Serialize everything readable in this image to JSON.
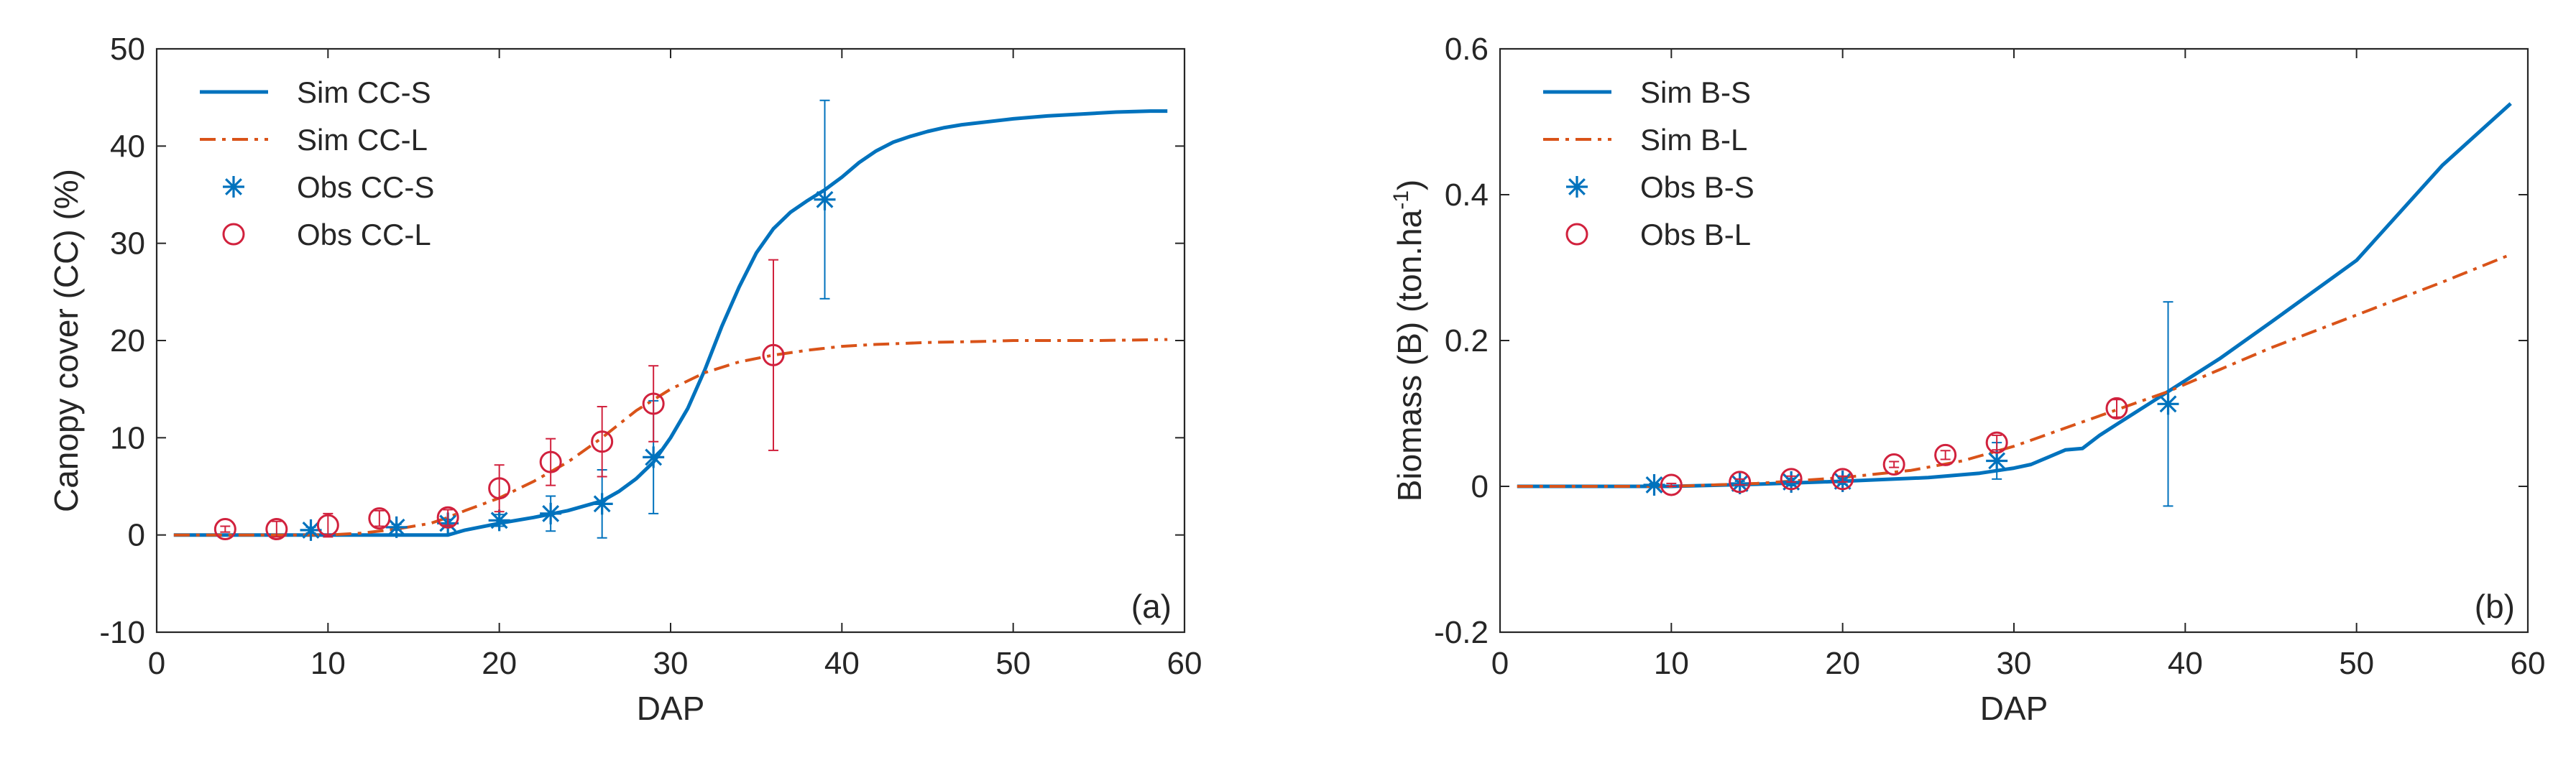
{
  "chart_data": [
    {
      "type": "line",
      "panel_label": "(a)",
      "title": "",
      "xlabel": "DAP",
      "ylabel": "Canopy cover (CC) (%)",
      "xlim": [
        0,
        60
      ],
      "ylim": [
        -10,
        50
      ],
      "xticks": [
        0,
        10,
        20,
        30,
        40,
        50,
        60
      ],
      "yticks": [
        -10,
        0,
        10,
        20,
        30,
        40,
        50
      ],
      "xtick_labels": [
        "0",
        "10",
        "20",
        "30",
        "40",
        "50",
        "60"
      ],
      "ytick_labels": [
        "-10",
        "0",
        "10",
        "20",
        "30",
        "40",
        "50"
      ],
      "legend_position": "top-left",
      "series": [
        {
          "name": "Sim CC-S",
          "kind": "line",
          "style": "solid",
          "color": "#0072BD",
          "x": [
            1,
            17,
            18,
            20,
            22,
            24,
            26,
            27,
            28,
            29,
            30,
            31,
            32,
            33,
            34,
            35,
            36,
            37,
            38,
            39,
            40,
            41,
            42,
            43,
            44,
            45,
            46,
            47,
            48,
            50,
            52,
            54,
            56,
            58,
            59
          ],
          "y": [
            0,
            0,
            0.5,
            1.2,
            1.8,
            2.5,
            3.5,
            4.5,
            5.8,
            7.5,
            10.0,
            13.0,
            17.0,
            21.5,
            25.5,
            29.0,
            31.5,
            33.2,
            34.4,
            35.5,
            36.8,
            38.3,
            39.5,
            40.4,
            41.0,
            41.5,
            41.9,
            42.2,
            42.4,
            42.8,
            43.1,
            43.3,
            43.5,
            43.6,
            43.6
          ]
        },
        {
          "name": "Sim CC-L",
          "kind": "line",
          "style": "dashdot",
          "color": "#D95319",
          "x": [
            1,
            10,
            12,
            14,
            16,
            17,
            18,
            20,
            22,
            24,
            26,
            28,
            30,
            32,
            34,
            36,
            38,
            40,
            42,
            45,
            48,
            50,
            55,
            59
          ],
          "y": [
            0,
            0,
            0.2,
            0.6,
            1.2,
            1.8,
            2.5,
            3.8,
            5.5,
            7.5,
            10.0,
            12.8,
            15.0,
            16.7,
            17.8,
            18.5,
            19.0,
            19.4,
            19.6,
            19.8,
            19.9,
            20.0,
            20.0,
            20.1
          ]
        },
        {
          "name": "Obs CC-S",
          "kind": "marker",
          "marker": "asterisk",
          "color": "#0072BD",
          "x": [
            9,
            14,
            17,
            20,
            23,
            26,
            29,
            39
          ],
          "y": [
            0.5,
            0.8,
            1.2,
            1.5,
            2.2,
            3.2,
            8.0,
            34.5
          ],
          "err": [
            0.3,
            0.3,
            0.4,
            0.6,
            1.8,
            3.5,
            5.8,
            10.2
          ]
        },
        {
          "name": "Obs CC-L",
          "kind": "marker",
          "marker": "circle",
          "color": "#D1213D",
          "x": [
            4,
            7,
            10,
            13,
            17,
            20,
            23,
            26,
            29,
            36
          ],
          "y": [
            0.6,
            0.6,
            1.0,
            1.7,
            1.8,
            4.8,
            7.5,
            9.6,
            13.5,
            18.5
          ],
          "err": [
            0.3,
            0.8,
            1.2,
            0.8,
            0.8,
            2.4,
            2.4,
            3.6,
            3.9,
            9.8
          ]
        }
      ]
    },
    {
      "type": "line",
      "panel_label": "(b)",
      "title": "",
      "xlabel": "DAP",
      "ylabel": "Biomass (B) (ton.ha",
      "ylabel_sup": "-1",
      "ylabel_end": ")",
      "xlim": [
        0,
        60
      ],
      "ylim": [
        -0.2,
        0.6
      ],
      "xticks": [
        0,
        10,
        20,
        30,
        40,
        50,
        60
      ],
      "yticks": [
        -0.2,
        0,
        0.2,
        0.4,
        0.6
      ],
      "xtick_labels": [
        "0",
        "10",
        "20",
        "30",
        "40",
        "50",
        "60"
      ],
      "ytick_labels": [
        "-0.2",
        "0",
        "0.2",
        "0.4",
        "0.6"
      ],
      "legend_position": "top-left",
      "series": [
        {
          "name": "Sim B-S",
          "kind": "line",
          "style": "solid",
          "color": "#0072BD",
          "x": [
            1,
            10,
            15,
            20,
            25,
            28,
            30,
            31,
            32,
            33,
            34,
            35,
            36,
            37,
            38,
            39,
            40,
            42,
            45,
            50,
            55,
            59
          ],
          "y": [
            0,
            0,
            0.003,
            0.007,
            0.012,
            0.018,
            0.025,
            0.03,
            0.04,
            0.05,
            0.052,
            0.07,
            0.085,
            0.1,
            0.115,
            0.13,
            0.145,
            0.175,
            0.225,
            0.31,
            0.44,
            0.525
          ]
        },
        {
          "name": "Sim B-L",
          "kind": "line",
          "style": "dashdot",
          "color": "#D95319",
          "x": [
            1,
            10,
            15,
            20,
            24,
            27,
            30,
            33,
            36,
            39,
            42,
            45,
            50,
            55,
            59
          ],
          "y": [
            0,
            0,
            0.004,
            0.012,
            0.022,
            0.035,
            0.055,
            0.08,
            0.105,
            0.13,
            0.16,
            0.19,
            0.235,
            0.28,
            0.318
          ]
        },
        {
          "name": "Obs B-S",
          "kind": "marker",
          "marker": "asterisk",
          "color": "#0072BD",
          "x": [
            9,
            14,
            17,
            20,
            29,
            39
          ],
          "y": [
            0.002,
            0.004,
            0.006,
            0.007,
            0.035,
            0.113
          ],
          "err": [
            0.002,
            0.003,
            0.005,
            0.004,
            0.025,
            0.14
          ]
        },
        {
          "name": "Obs B-L",
          "kind": "marker",
          "marker": "circle",
          "color": "#D1213D",
          "x": [
            10,
            14,
            17,
            20,
            23,
            26,
            29,
            36
          ],
          "y": [
            0.002,
            0.006,
            0.01,
            0.01,
            0.03,
            0.043,
            0.06,
            0.107
          ],
          "err": [
            0.002,
            0.004,
            0.004,
            0.004,
            0.004,
            0.006,
            0.01,
            0.012
          ]
        }
      ]
    }
  ]
}
